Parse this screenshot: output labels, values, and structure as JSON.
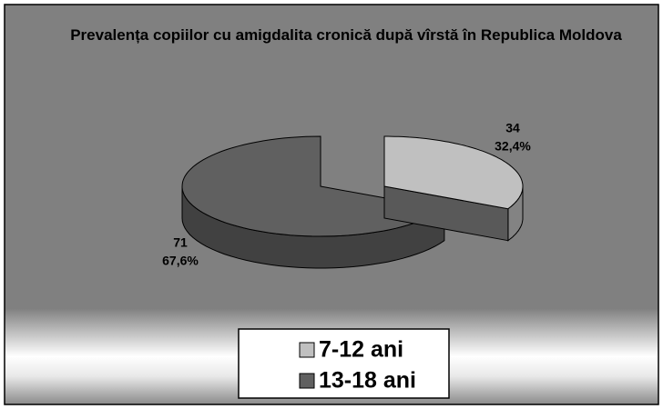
{
  "chart_data": {
    "type": "pie",
    "title": "Prevalența copiilor cu amigdalita cronică după vîrstă în Republica Moldova",
    "categories": [
      "7-12 ani",
      "13-18 ani"
    ],
    "values": [
      34,
      71
    ],
    "percents": [
      32.4,
      67.6
    ],
    "percent_labels": [
      "32,4%",
      "67,6%"
    ],
    "colors": [
      "#c0c0c0",
      "#606060"
    ],
    "legend": "bottom"
  }
}
